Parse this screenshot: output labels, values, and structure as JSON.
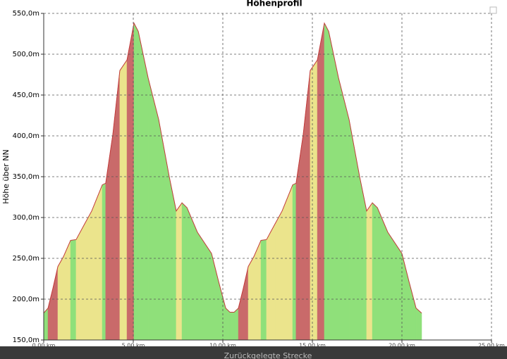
{
  "chart_data": {
    "type": "area",
    "title": "Höhenprofil",
    "y_label": "Höhe über NN",
    "x_label": "Zurückgelegte Strecke",
    "xlim": [
      0,
      25
    ],
    "ylim": [
      150,
      550
    ],
    "xticks": [
      {
        "value": 0,
        "label": "0,00 km"
      },
      {
        "value": 5,
        "label": "5,00 km"
      },
      {
        "value": 10,
        "label": "10,00 km"
      },
      {
        "value": 15,
        "label": "15,00 km"
      },
      {
        "value": 20,
        "label": "20,00 km"
      },
      {
        "value": 25,
        "label": "25,00 km"
      }
    ],
    "yticks": [
      {
        "value": 150,
        "label": "150,0m"
      },
      {
        "value": 200,
        "label": "200,0m"
      },
      {
        "value": 250,
        "label": "250,0m"
      },
      {
        "value": 300,
        "label": "300,0m"
      },
      {
        "value": 350,
        "label": "350,0m"
      },
      {
        "value": 400,
        "label": "400,0m"
      },
      {
        "value": 450,
        "label": "450,0m"
      },
      {
        "value": 500,
        "label": "500,0m"
      },
      {
        "value": 550,
        "label": "550,0m"
      }
    ],
    "grid": true,
    "line_color": "#c23b3b",
    "x": [
      0,
      0.24,
      0.51,
      0.79,
      1.1,
      1.5,
      1.81,
      2.28,
      2.68,
      3.27,
      3.46,
      3.86,
      4.25,
      4.65,
      5.04,
      5.28,
      5.83,
      6.42,
      7.0,
      7.4,
      7.72,
      8.0,
      8.58,
      9.37,
      9.76,
      10.16,
      10.4,
      10.63,
      10.87,
      11.14,
      11.42,
      11.73,
      12.13,
      12.44,
      12.91,
      13.31,
      13.9,
      14.09,
      14.49,
      14.88,
      15.28,
      15.67,
      15.91,
      16.46,
      17.05,
      17.63,
      18.03,
      18.35,
      18.63,
      19.21,
      20.0,
      20.39,
      20.79,
      21.1
    ],
    "values": [
      183,
      189,
      213,
      240,
      252,
      272,
      273,
      292,
      308,
      340,
      342,
      402,
      480,
      493,
      538,
      528,
      471,
      420,
      351,
      308,
      318,
      312,
      282,
      256,
      222,
      189,
      184,
      184,
      189,
      213,
      240,
      252,
      272,
      273,
      292,
      308,
      340,
      342,
      402,
      480,
      493,
      538,
      528,
      471,
      420,
      351,
      308,
      318,
      312,
      282,
      256,
      222,
      189,
      183
    ],
    "segment_colors": [
      "#8fe07a",
      "#c96a6a",
      "#c96a6a",
      "#ebe48c",
      "#ebe48c",
      "#8fe07a",
      "#ebe48c",
      "#ebe48c",
      "#ebe48c",
      "#8fe07a",
      "#c96a6a",
      "#c96a6a",
      "#ebe48c",
      "#c96a6a",
      "#8fe07a",
      "#8fe07a",
      "#8fe07a",
      "#8fe07a",
      "#8fe07a",
      "#ebe48c",
      "#8fe07a",
      "#8fe07a",
      "#8fe07a",
      "#8fe07a",
      "#8fe07a",
      "#8fe07a",
      "#8fe07a",
      "#8fe07a",
      "#c96a6a",
      "#c96a6a",
      "#ebe48c",
      "#ebe48c",
      "#8fe07a",
      "#ebe48c",
      "#ebe48c",
      "#ebe48c",
      "#8fe07a",
      "#c96a6a",
      "#c96a6a",
      "#ebe48c",
      "#c96a6a",
      "#8fe07a",
      "#8fe07a",
      "#8fe07a",
      "#8fe07a",
      "#8fe07a",
      "#ebe48c",
      "#8fe07a",
      "#8fe07a",
      "#8fe07a",
      "#8fe07a",
      "#8fe07a",
      "#8fe07a"
    ]
  }
}
